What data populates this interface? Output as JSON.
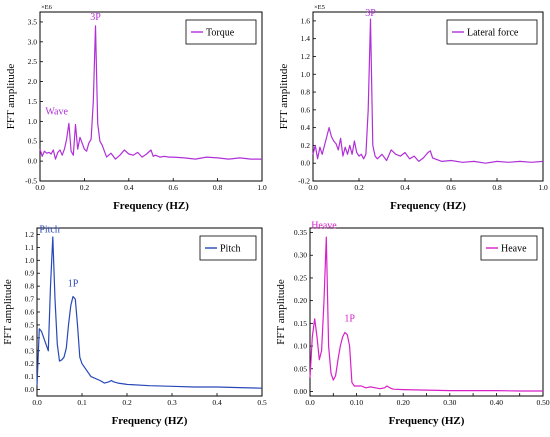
{
  "chart_data": [
    {
      "type": "line",
      "color": "#b030d8",
      "xlabel": "Frequency (HZ)",
      "ylabel": "FFT amplitude",
      "exponent_label": "×E6",
      "legend": "Torque",
      "legend_position": "top-right",
      "xlim": [
        0,
        1.0
      ],
      "ylim": [
        -0.5,
        3.75
      ],
      "xticks": [
        {
          "v": 0,
          "l": "0.0"
        },
        {
          "v": 0.2,
          "l": "0.2"
        },
        {
          "v": 0.4,
          "l": "0.4"
        },
        {
          "v": 0.6,
          "l": "0.6"
        },
        {
          "v": 0.8,
          "l": "0.8"
        },
        {
          "v": 1.0,
          "l": "1.0"
        }
      ],
      "yticks": [
        {
          "v": -0.5,
          "l": "-0.5"
        },
        {
          "v": 0,
          "l": "0.0"
        },
        {
          "v": 0.5,
          "l": "0.5"
        },
        {
          "v": 1.0,
          "l": "1.0"
        },
        {
          "v": 1.5,
          "l": "1.5"
        },
        {
          "v": 2.0,
          "l": "2.0"
        },
        {
          "v": 2.5,
          "l": "2.5"
        },
        {
          "v": 3.0,
          "l": "3.0"
        },
        {
          "v": 3.5,
          "l": "3.5"
        }
      ],
      "annotations": [
        {
          "text": "3P",
          "x": 0.25,
          "y": 3.5
        },
        {
          "text": "Wave",
          "x": 0.075,
          "y": 1.12
        }
      ],
      "series": [
        {
          "x": [
            0,
            0.01,
            0.02,
            0.03,
            0.04,
            0.05,
            0.06,
            0.07,
            0.08,
            0.09,
            0.1,
            0.11,
            0.12,
            0.13,
            0.14,
            0.15,
            0.16,
            0.17,
            0.18,
            0.19,
            0.2,
            0.21,
            0.22,
            0.23,
            0.24,
            0.25,
            0.26,
            0.27,
            0.28,
            0.29,
            0.3,
            0.32,
            0.34,
            0.36,
            0.38,
            0.4,
            0.42,
            0.44,
            0.46,
            0.48,
            0.5,
            0.51,
            0.52,
            0.54,
            0.56,
            0.58,
            0.6,
            0.65,
            0.7,
            0.75,
            0.8,
            0.85,
            0.9,
            0.95,
            1.0
          ],
          "y": [
            0.3,
            0.12,
            0.25,
            0.2,
            0.22,
            0.18,
            0.28,
            0.05,
            0.22,
            0.28,
            0.15,
            0.3,
            0.55,
            0.95,
            0.25,
            0.15,
            0.92,
            0.3,
            0.6,
            0.45,
            0.3,
            0.25,
            0.45,
            0.55,
            1.5,
            3.4,
            0.95,
            0.5,
            0.4,
            0.25,
            0.1,
            0.2,
            0.05,
            0.15,
            0.28,
            0.18,
            0.15,
            0.22,
            0.1,
            0.18,
            0.28,
            0.12,
            0.15,
            0.1,
            0.12,
            0.1,
            0.1,
            0.08,
            0.05,
            0.1,
            0.08,
            0.05,
            0.08,
            0.05,
            0.05
          ]
        }
      ]
    },
    {
      "type": "line",
      "color": "#b030d8",
      "xlabel": "Frequency (HZ)",
      "ylabel": "FFT amplitude",
      "exponent_label": "×E5",
      "legend": "Lateral force",
      "legend_position": "top-right",
      "xlim": [
        0,
        1.0
      ],
      "ylim": [
        -0.2,
        1.7
      ],
      "xticks": [
        {
          "v": 0,
          "l": "0.0"
        },
        {
          "v": 0.2,
          "l": "0.2"
        },
        {
          "v": 0.4,
          "l": "0.4"
        },
        {
          "v": 0.6,
          "l": "0.6"
        },
        {
          "v": 0.8,
          "l": "0.8"
        },
        {
          "v": 1.0,
          "l": "1.0"
        }
      ],
      "yticks": [
        {
          "v": -0.2,
          "l": "-0.2"
        },
        {
          "v": 0,
          "l": "0.0"
        },
        {
          "v": 0.2,
          "l": "0.2"
        },
        {
          "v": 0.4,
          "l": "0.4"
        },
        {
          "v": 0.6,
          "l": "0.6"
        },
        {
          "v": 0.8,
          "l": "0.8"
        },
        {
          "v": 1.0,
          "l": "1.0"
        },
        {
          "v": 1.2,
          "l": "1.2"
        },
        {
          "v": 1.4,
          "l": "1.4"
        },
        {
          "v": 1.6,
          "l": "1.6"
        }
      ],
      "annotations": [
        {
          "text": "3P",
          "x": 0.25,
          "y": 1.63
        }
      ],
      "series": [
        {
          "x": [
            0,
            0.01,
            0.02,
            0.03,
            0.04,
            0.05,
            0.06,
            0.07,
            0.08,
            0.09,
            0.1,
            0.11,
            0.12,
            0.13,
            0.14,
            0.15,
            0.16,
            0.17,
            0.18,
            0.19,
            0.2,
            0.21,
            0.22,
            0.23,
            0.24,
            0.25,
            0.26,
            0.27,
            0.28,
            0.3,
            0.32,
            0.34,
            0.36,
            0.38,
            0.4,
            0.42,
            0.44,
            0.46,
            0.48,
            0.5,
            0.51,
            0.52,
            0.54,
            0.56,
            0.6,
            0.65,
            0.7,
            0.75,
            0.8,
            0.85,
            0.9,
            0.95,
            1.0
          ],
          "y": [
            0.1,
            0.2,
            0.05,
            0.18,
            0.1,
            0.2,
            0.3,
            0.4,
            0.3,
            0.25,
            0.22,
            0.15,
            0.28,
            0.08,
            0.18,
            0.1,
            0.2,
            0.1,
            0.25,
            0.12,
            0.08,
            0.1,
            0.05,
            0.1,
            0.6,
            1.62,
            0.2,
            0.08,
            0.05,
            0.1,
            0.03,
            0.15,
            0.1,
            0.08,
            0.12,
            0.05,
            0.08,
            0.02,
            0.06,
            0.12,
            0.14,
            0.06,
            0.04,
            0.02,
            0.03,
            0.01,
            0.02,
            0.0,
            0.02,
            0.01,
            0.02,
            0.01,
            0.02
          ]
        }
      ]
    },
    {
      "type": "line",
      "color": "#2848b8",
      "xlabel": "Frequency (HZ)",
      "ylabel": "FFT amplitude",
      "legend": "Pitch",
      "legend_position": "top-right",
      "xlim": [
        0,
        0.5
      ],
      "ylim": [
        -0.05,
        1.25
      ],
      "xticks": [
        {
          "v": 0,
          "l": "0.0"
        },
        {
          "v": 0.1,
          "l": "0.1"
        },
        {
          "v": 0.2,
          "l": "0.2"
        },
        {
          "v": 0.3,
          "l": "0.3"
        },
        {
          "v": 0.4,
          "l": "0.4"
        },
        {
          "v": 0.5,
          "l": "0.5"
        }
      ],
      "yticks": [
        {
          "v": 0,
          "l": "0.0"
        },
        {
          "v": 0.1,
          "l": "0.1"
        },
        {
          "v": 0.2,
          "l": "0.2"
        },
        {
          "v": 0.3,
          "l": "0.3"
        },
        {
          "v": 0.4,
          "l": "0.4"
        },
        {
          "v": 0.5,
          "l": "0.5"
        },
        {
          "v": 0.6,
          "l": "0.6"
        },
        {
          "v": 0.7,
          "l": "0.7"
        },
        {
          "v": 0.8,
          "l": "0.8"
        },
        {
          "v": 0.9,
          "l": "0.9"
        },
        {
          "v": 1.0,
          "l": "1.0"
        },
        {
          "v": 1.1,
          "l": "1.1"
        },
        {
          "v": 1.2,
          "l": "1.2"
        }
      ],
      "annotations": [
        {
          "text": "Pitch",
          "x": 0.028,
          "y": 1.2
        },
        {
          "text": "1P",
          "x": 0.08,
          "y": 0.78
        }
      ],
      "series": [
        {
          "x": [
            0,
            0.005,
            0.01,
            0.02,
            0.025,
            0.03,
            0.035,
            0.04,
            0.045,
            0.05,
            0.055,
            0.06,
            0.065,
            0.07,
            0.075,
            0.08,
            0.085,
            0.09,
            0.095,
            0.1,
            0.12,
            0.14,
            0.15,
            0.16,
            0.165,
            0.17,
            0.18,
            0.2,
            0.25,
            0.3,
            0.35,
            0.4,
            0.45,
            0.5
          ],
          "y": [
            0.03,
            0.47,
            0.45,
            0.35,
            0.3,
            0.8,
            1.18,
            0.7,
            0.35,
            0.22,
            0.23,
            0.25,
            0.32,
            0.5,
            0.65,
            0.72,
            0.7,
            0.5,
            0.25,
            0.2,
            0.1,
            0.07,
            0.05,
            0.06,
            0.07,
            0.06,
            0.05,
            0.04,
            0.03,
            0.025,
            0.02,
            0.02,
            0.015,
            0.01
          ]
        }
      ]
    },
    {
      "type": "line",
      "color": "#d820c8",
      "xlabel": "Frequency (HZ)",
      "ylabel": "FFT amplitude",
      "legend": "Heave",
      "legend_position": "top-right",
      "xlim": [
        0,
        0.5
      ],
      "ylim": [
        -0.01,
        0.36
      ],
      "xticks": [
        {
          "v": 0,
          "l": "0.0"
        },
        {
          "v": 0.05,
          "l": "0.05"
        },
        {
          "v": 0.1,
          "l": "0.10"
        },
        {
          "v": 0.15,
          "l": "0.15"
        },
        {
          "v": 0.2,
          "l": "0.20"
        },
        {
          "v": 0.25,
          "l": "0.25"
        },
        {
          "v": 0.3,
          "l": "0.30"
        },
        {
          "v": 0.35,
          "l": "0.35"
        },
        {
          "v": 0.4,
          "l": "0.40"
        },
        {
          "v": 0.45,
          "l": "0.45"
        },
        {
          "v": 0.5,
          "l": "0.50"
        }
      ],
      "yticks": [
        {
          "v": 0,
          "l": "0.00"
        },
        {
          "v": 0.05,
          "l": "0.05"
        },
        {
          "v": 0.1,
          "l": "0.10"
        },
        {
          "v": 0.15,
          "l": "0.15"
        },
        {
          "v": 0.2,
          "l": "0.20"
        },
        {
          "v": 0.25,
          "l": "0.25"
        },
        {
          "v": 0.3,
          "l": "0.30"
        },
        {
          "v": 0.35,
          "l": "0.35"
        }
      ],
      "annotations": [
        {
          "text": "Heave",
          "x": 0.03,
          "y": 0.355
        },
        {
          "text": "1P",
          "x": 0.085,
          "y": 0.15
        }
      ],
      "series": [
        {
          "x": [
            0,
            0.005,
            0.01,
            0.015,
            0.02,
            0.025,
            0.03,
            0.035,
            0.04,
            0.045,
            0.05,
            0.055,
            0.06,
            0.065,
            0.07,
            0.075,
            0.08,
            0.085,
            0.09,
            0.095,
            0.1,
            0.11,
            0.12,
            0.13,
            0.14,
            0.15,
            0.16,
            0.165,
            0.17,
            0.175,
            0.18,
            0.2,
            0.25,
            0.3,
            0.35,
            0.4,
            0.45,
            0.5
          ],
          "y": [
            0.03,
            0.12,
            0.16,
            0.12,
            0.07,
            0.09,
            0.2,
            0.34,
            0.1,
            0.04,
            0.025,
            0.035,
            0.07,
            0.1,
            0.12,
            0.13,
            0.125,
            0.1,
            0.02,
            0.012,
            0.012,
            0.012,
            0.008,
            0.01,
            0.008,
            0.006,
            0.008,
            0.012,
            0.009,
            0.006,
            0.005,
            0.004,
            0.003,
            0.002,
            0.002,
            0.002,
            0.001,
            0.001
          ]
        }
      ]
    }
  ]
}
